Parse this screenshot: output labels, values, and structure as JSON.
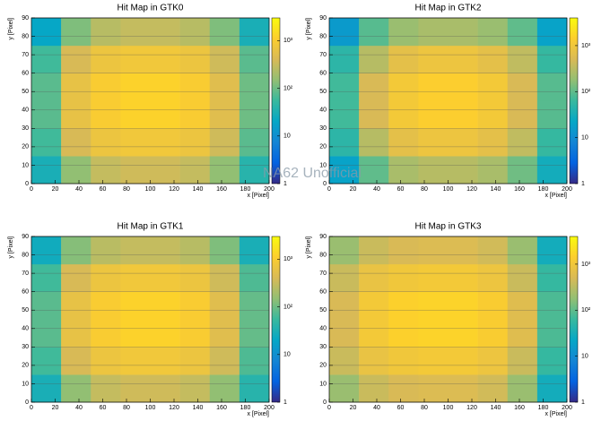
{
  "watermark": "NA62 Unofficial",
  "chart_data": [
    {
      "type": "heatmap",
      "title": "Hit Map in GTK0",
      "xlabel": "x [Pixel]",
      "ylabel": "y [Pixel]",
      "xlim": [
        0,
        200
      ],
      "xticks": [
        0,
        20,
        40,
        60,
        80,
        100,
        120,
        140,
        160,
        180,
        200
      ],
      "ylim": [
        0,
        90
      ],
      "yticks": [
        0,
        10,
        20,
        30,
        40,
        50,
        60,
        70,
        80,
        90
      ],
      "grid": true,
      "zlim": [
        1,
        3000
      ],
      "zticks": [
        1,
        10,
        {
          "value": 100,
          "label": "10²"
        },
        {
          "value": 1000,
          "label": "10³"
        }
      ],
      "log_z": true,
      "colormap": [
        "#352a87",
        "#0363e1",
        "#1485d4",
        "#06a7c6",
        "#38b99e",
        "#92bf73",
        "#d9ba56",
        "#fcce2e",
        "#f9fb0e"
      ],
      "xbins": [
        0,
        25,
        50,
        75,
        100,
        125,
        150,
        175,
        200
      ],
      "ybins": [
        0,
        15,
        30,
        45,
        60,
        75,
        90
      ],
      "z": [
        [
          30,
          150,
          300,
          350,
          350,
          300,
          150,
          40
        ],
        [
          60,
          400,
          700,
          800,
          800,
          700,
          350,
          80
        ],
        [
          80,
          600,
          1000,
          1200,
          1200,
          1000,
          500,
          100
        ],
        [
          80,
          600,
          1000,
          1200,
          1200,
          1000,
          500,
          100
        ],
        [
          60,
          400,
          700,
          800,
          800,
          700,
          350,
          80
        ],
        [
          20,
          120,
          250,
          300,
          300,
          250,
          120,
          30
        ]
      ]
    },
    {
      "type": "heatmap",
      "title": "Hit Map in GTK2",
      "xlabel": "x [Pixel]",
      "ylabel": "y [Pixel]",
      "xlim": [
        0,
        200
      ],
      "xticks": [
        0,
        20,
        40,
        60,
        80,
        100,
        120,
        140,
        160,
        180,
        200
      ],
      "ylim": [
        0,
        90
      ],
      "yticks": [
        0,
        10,
        20,
        30,
        40,
        50,
        60,
        70,
        80,
        90
      ],
      "grid": true,
      "zlim": [
        1,
        4000
      ],
      "zticks": [
        1,
        10,
        {
          "value": 100,
          "label": "10²"
        },
        {
          "value": 1000,
          "label": "10³"
        }
      ],
      "log_z": true,
      "colormap": [
        "#352a87",
        "#0363e1",
        "#1485d4",
        "#06a7c6",
        "#38b99e",
        "#92bf73",
        "#d9ba56",
        "#fcce2e",
        "#f9fb0e"
      ],
      "xbins": [
        0,
        25,
        50,
        75,
        100,
        125,
        150,
        175,
        200
      ],
      "ybins": [
        0,
        15,
        30,
        45,
        60,
        75,
        90
      ],
      "z": [
        [
          20,
          100,
          250,
          300,
          300,
          250,
          120,
          30
        ],
        [
          50,
          300,
          700,
          900,
          900,
          700,
          350,
          60
        ],
        [
          70,
          500,
          1100,
          1400,
          1400,
          1100,
          500,
          90
        ],
        [
          70,
          500,
          1100,
          1400,
          1400,
          1100,
          500,
          90
        ],
        [
          50,
          300,
          700,
          900,
          900,
          700,
          350,
          60
        ],
        [
          15,
          90,
          200,
          250,
          250,
          200,
          100,
          20
        ]
      ]
    },
    {
      "type": "heatmap",
      "title": "Hit Map in GTK1",
      "xlabel": "x [Pixel]",
      "ylabel": "y [Pixel]",
      "xlim": [
        0,
        200
      ],
      "xticks": [
        0,
        20,
        40,
        60,
        80,
        100,
        120,
        140,
        160,
        180,
        200
      ],
      "ylim": [
        0,
        90
      ],
      "yticks": [
        0,
        10,
        20,
        30,
        40,
        50,
        60,
        70,
        80,
        90
      ],
      "grid": true,
      "zlim": [
        1,
        3000
      ],
      "zticks": [
        1,
        10,
        {
          "value": 100,
          "label": "10²"
        },
        {
          "value": 1000,
          "label": "10³"
        }
      ],
      "log_z": true,
      "colormap": [
        "#352a87",
        "#0363e1",
        "#1485d4",
        "#06a7c6",
        "#38b99e",
        "#92bf73",
        "#d9ba56",
        "#fcce2e",
        "#f9fb0e"
      ],
      "xbins": [
        0,
        25,
        50,
        75,
        100,
        125,
        150,
        175,
        200
      ],
      "ybins": [
        0,
        15,
        30,
        45,
        60,
        75,
        90
      ],
      "z": [
        [
          30,
          150,
          300,
          350,
          350,
          300,
          150,
          40
        ],
        [
          60,
          400,
          700,
          800,
          800,
          700,
          350,
          70
        ],
        [
          80,
          600,
          1000,
          1200,
          1200,
          1000,
          500,
          90
        ],
        [
          80,
          600,
          1000,
          1200,
          1200,
          1000,
          500,
          90
        ],
        [
          60,
          400,
          700,
          800,
          800,
          700,
          350,
          70
        ],
        [
          25,
          130,
          260,
          300,
          300,
          250,
          120,
          30
        ]
      ]
    },
    {
      "type": "heatmap",
      "title": "Hit Map in GTK3",
      "xlabel": "x [Pixel]",
      "ylabel": "y [Pixel]",
      "xlim": [
        0,
        200
      ],
      "xticks": [
        0,
        20,
        40,
        60,
        80,
        100,
        120,
        140,
        160,
        180,
        200
      ],
      "ylim": [
        0,
        90
      ],
      "yticks": [
        0,
        10,
        20,
        30,
        40,
        50,
        60,
        70,
        80,
        90
      ],
      "grid": true,
      "zlim": [
        1,
        4000
      ],
      "zticks": [
        1,
        10,
        {
          "value": 100,
          "label": "10²"
        },
        {
          "value": 1000,
          "label": "10³"
        }
      ],
      "log_z": true,
      "colormap": [
        "#352a87",
        "#0363e1",
        "#1485d4",
        "#06a7c6",
        "#38b99e",
        "#92bf73",
        "#d9ba56",
        "#fcce2e",
        "#f9fb0e"
      ],
      "xbins": [
        0,
        25,
        50,
        75,
        100,
        125,
        150,
        175,
        200
      ],
      "ybins": [
        0,
        15,
        30,
        45,
        60,
        75,
        90
      ],
      "z": [
        [
          200,
          400,
          500,
          550,
          550,
          450,
          200,
          30
        ],
        [
          400,
          800,
          1000,
          1100,
          1100,
          900,
          400,
          60
        ],
        [
          500,
          1100,
          1500,
          1600,
          1600,
          1300,
          600,
          80
        ],
        [
          500,
          1100,
          1500,
          1600,
          1600,
          1300,
          600,
          80
        ],
        [
          400,
          800,
          1000,
          1100,
          1100,
          900,
          400,
          60
        ],
        [
          200,
          400,
          500,
          550,
          550,
          450,
          200,
          30
        ]
      ]
    }
  ]
}
